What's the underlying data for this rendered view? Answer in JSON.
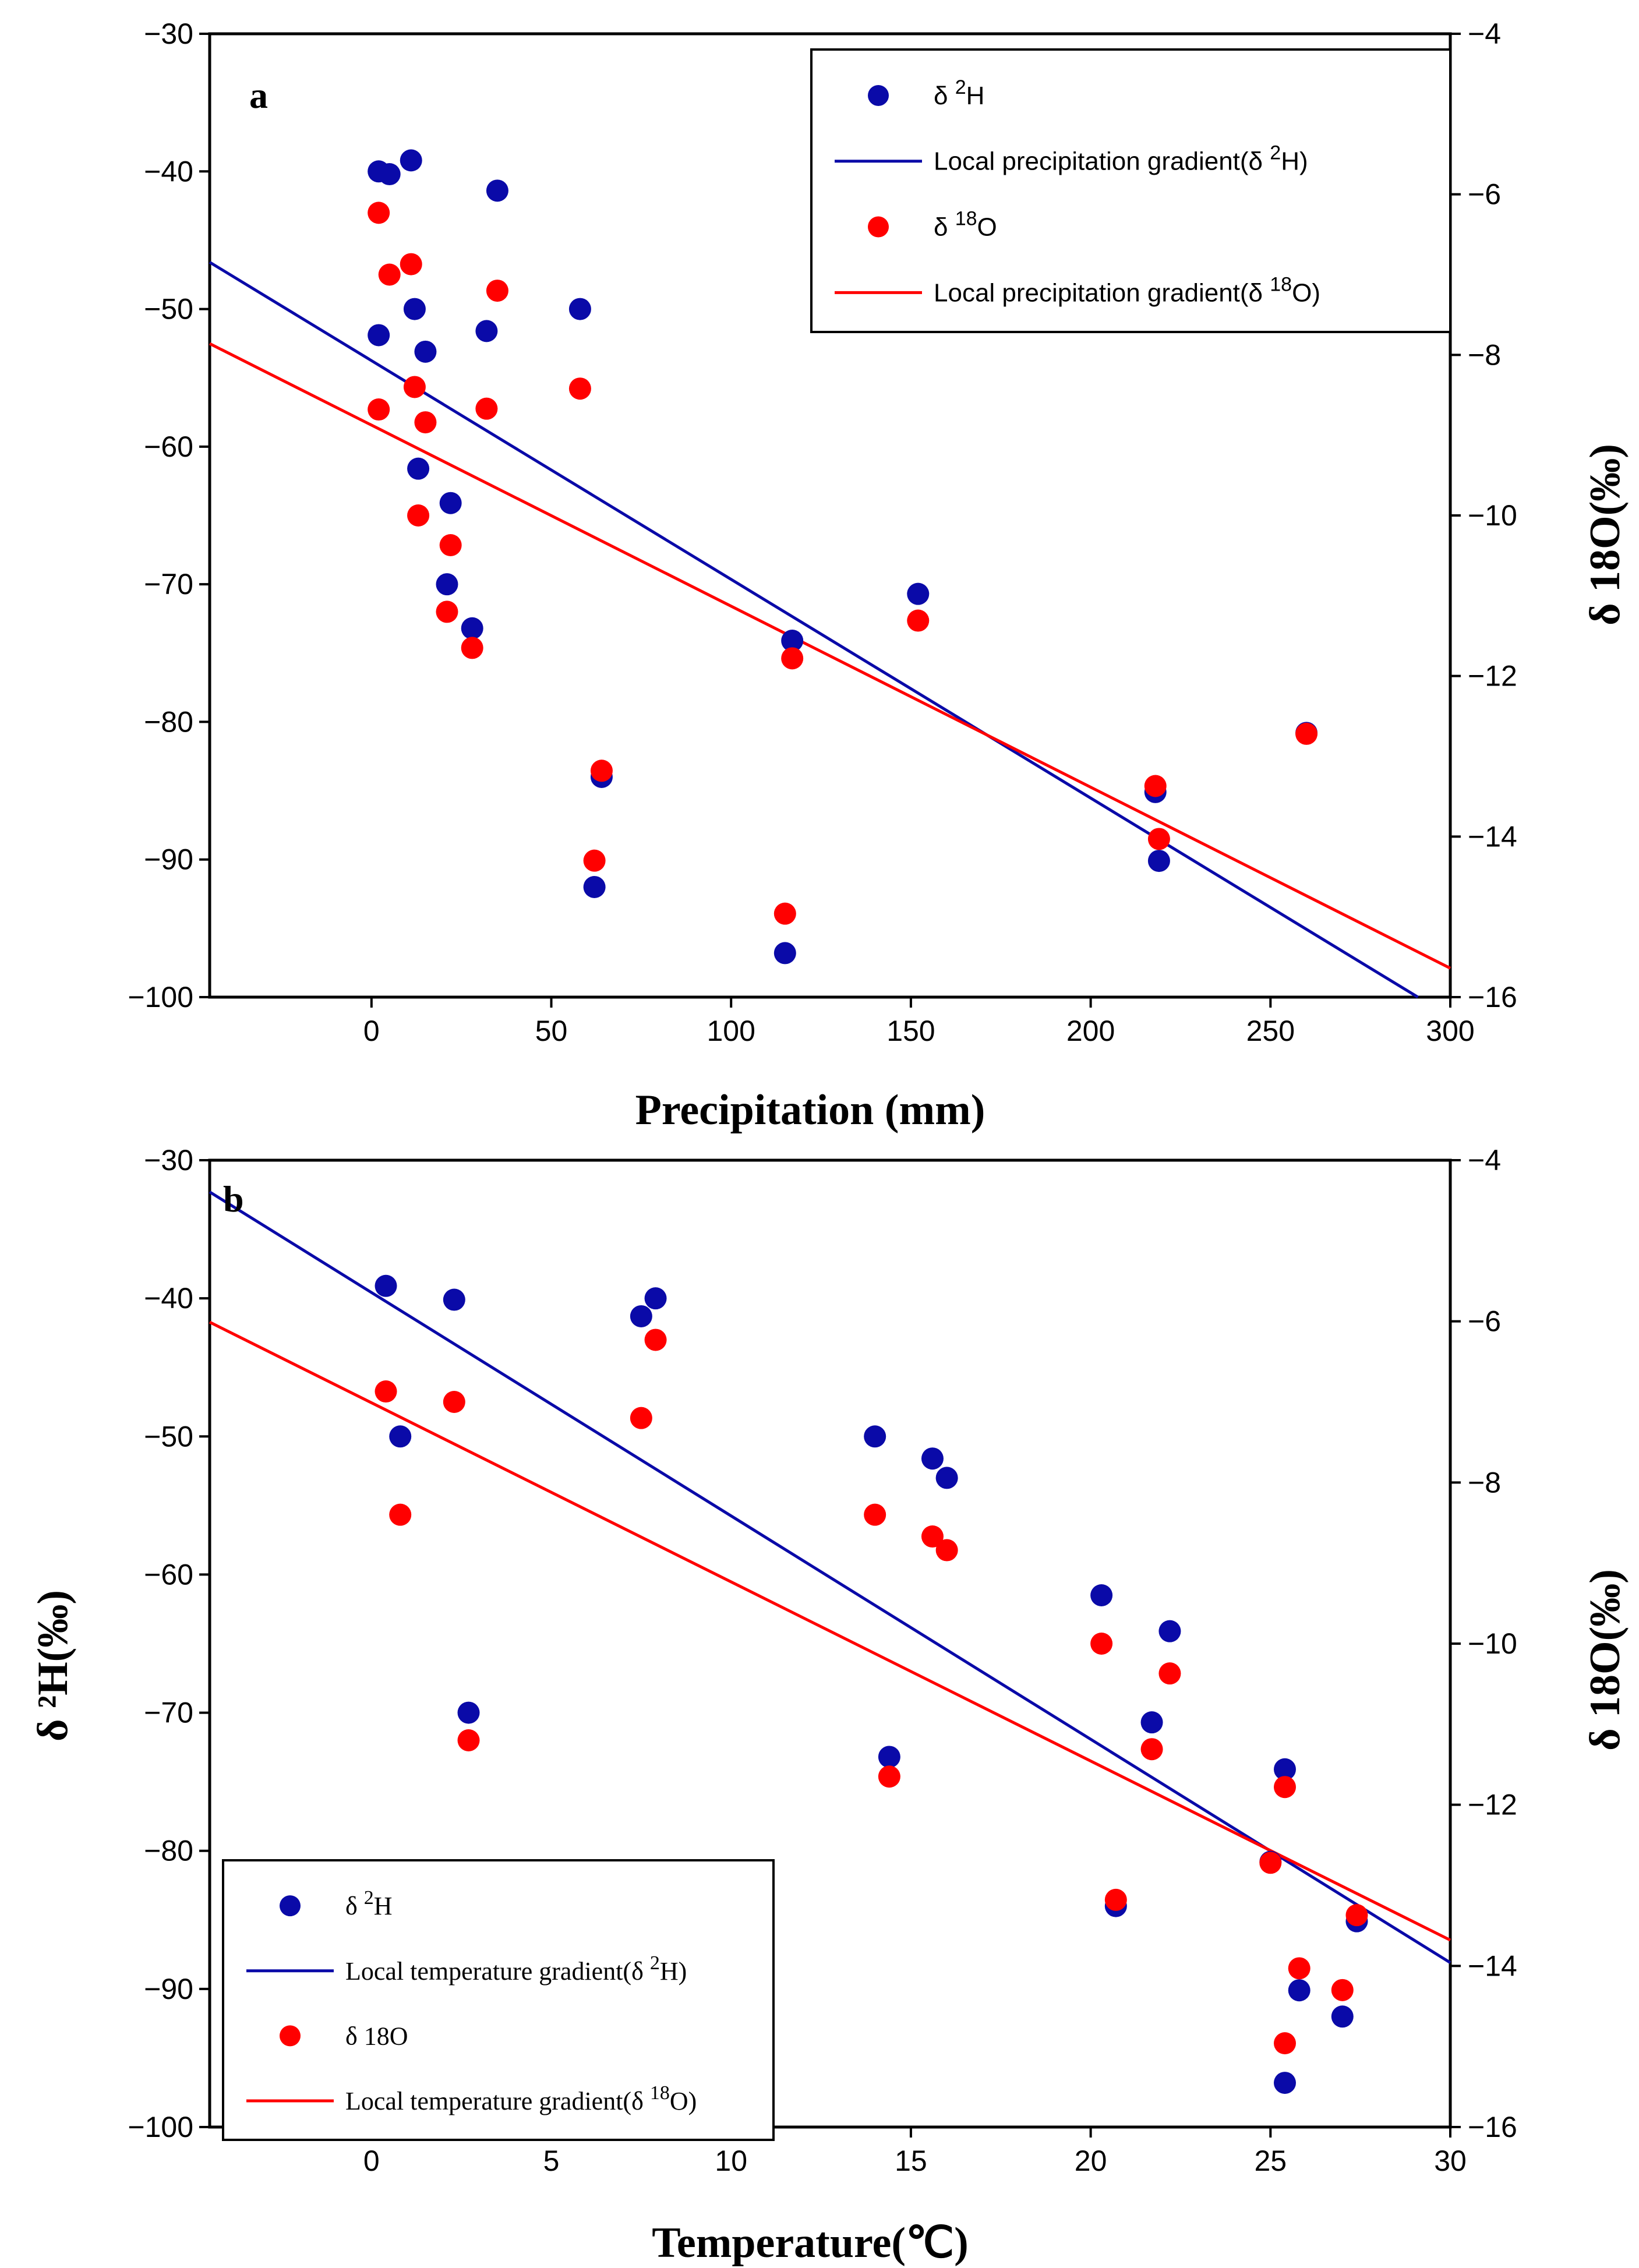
{
  "chart_data": [
    {
      "panel": "a",
      "type": "scatter",
      "xlabel": "Precipitation (mm)",
      "ylabel_left": "",
      "ylabel_right": "δ 18O(‰)",
      "xlim": [
        -45,
        300
      ],
      "ylim_left": [
        -100,
        -30
      ],
      "ylim_right": [
        -16,
        -4
      ],
      "xticks": [
        0,
        50,
        100,
        150,
        200,
        250,
        300
      ],
      "yticks_left": [
        -100,
        -90,
        -80,
        -70,
        -60,
        -50,
        -40,
        -30
      ],
      "yticks_right": [
        -16,
        -14,
        -12,
        -10,
        -8,
        -6,
        -4
      ],
      "legend": {
        "position": "top-right",
        "entries": [
          {
            "base": "δ ",
            "sup": "2",
            "rest": "H",
            "kind": "marker",
            "color": "#0a0aa8",
            "font": "sans"
          },
          {
            "base": "Local precipitation gradient(δ ",
            "sup": "2",
            "rest": "H)",
            "kind": "line",
            "color": "#0a0aa8",
            "font": "sans"
          },
          {
            "base": "δ ",
            "sup": "18",
            "rest": "O",
            "kind": "marker",
            "color": "#ff0000",
            "font": "sans"
          },
          {
            "base": "Local precipitation gradient(δ ",
            "sup": "18",
            "rest": "O)",
            "kind": "line",
            "color": "#ff0000",
            "font": "sans"
          }
        ]
      },
      "series": [
        {
          "name": "δ2H",
          "axis": "left",
          "color": "#0a0aa8",
          "points": [
            [
              2,
              -40
            ],
            [
              5,
              -40.2
            ],
            [
              11,
              -39.2
            ],
            [
              35,
              -41.4
            ],
            [
              2,
              -51.9
            ],
            [
              12,
              -50
            ],
            [
              15,
              -53.1
            ],
            [
              32,
              -51.6
            ],
            [
              58,
              -50
            ],
            [
              13,
              -61.6
            ],
            [
              22,
              -64.1
            ],
            [
              21,
              -70
            ],
            [
              28,
              -73.2
            ],
            [
              117,
              -74.1
            ],
            [
              152,
              -70.7
            ],
            [
              64,
              -84
            ],
            [
              62,
              -92
            ],
            [
              115,
              -96.8
            ],
            [
              218,
              -85.1
            ],
            [
              219,
              -90.1
            ],
            [
              260,
              -80.8
            ]
          ]
        },
        {
          "name": "δ18O",
          "axis": "right",
          "color": "#ff0000",
          "points": [
            [
              2,
              -6.23
            ],
            [
              5,
              -7.0
            ],
            [
              11,
              -6.87
            ],
            [
              35,
              -7.2
            ],
            [
              2,
              -8.68
            ],
            [
              12,
              -8.4
            ],
            [
              15,
              -8.84
            ],
            [
              32,
              -8.67
            ],
            [
              58,
              -8.42
            ],
            [
              13,
              -10.0
            ],
            [
              22,
              -10.37
            ],
            [
              21,
              -11.2
            ],
            [
              28,
              -11.65
            ],
            [
              117,
              -11.78
            ],
            [
              152,
              -11.31
            ],
            [
              64,
              -13.18
            ],
            [
              62,
              -14.3
            ],
            [
              115,
              -14.96
            ],
            [
              218,
              -13.37
            ],
            [
              219,
              -14.03
            ],
            [
              260,
              -12.72
            ]
          ]
        }
      ],
      "fit_lines": [
        {
          "name": "Local precipitation gradient(δ2H)",
          "axis": "left",
          "color": "#0a0aa8",
          "x": [
            -45,
            291
          ],
          "y": [
            -46.6,
            -100
          ]
        },
        {
          "name": "Local precipitation gradient(δ18O)",
          "axis": "right",
          "color": "#ff0000",
          "x": [
            -45,
            300
          ],
          "y": [
            -7.86,
            -15.64
          ]
        }
      ]
    },
    {
      "panel": "b",
      "type": "scatter",
      "xlabel": "Temperature(℃)",
      "ylabel_left": "δ ²H(‰)",
      "ylabel_right": "δ 18O(‰)",
      "xlim": [
        -4.5,
        30
      ],
      "ylim_left": [
        -100,
        -30
      ],
      "ylim_right": [
        -16,
        -4
      ],
      "xticks": [
        0,
        5,
        10,
        15,
        20,
        25,
        30
      ],
      "yticks_left": [
        -100,
        -90,
        -80,
        -70,
        -60,
        -50,
        -40,
        -30
      ],
      "yticks_right": [
        -16,
        -14,
        -12,
        -10,
        -8,
        -6,
        -4
      ],
      "legend": {
        "position": "bottom-left",
        "entries": [
          {
            "base": "δ ",
            "sup": "2",
            "rest": "H",
            "kind": "marker",
            "color": "#0a0aa8",
            "font": "serif"
          },
          {
            "base": "Local temperature gradient(δ ",
            "sup": "2",
            "rest": "H)",
            "kind": "line",
            "color": "#0a0aa8",
            "font": "serif"
          },
          {
            "base": "δ 18O",
            "sup": "",
            "rest": "",
            "kind": "marker",
            "color": "#ff0000",
            "font": "serif"
          },
          {
            "base": "Local temperature gradient(δ ",
            "sup": "18",
            "rest": "O)",
            "kind": "line",
            "color": "#ff0000",
            "font": "serif"
          }
        ]
      },
      "series": [
        {
          "name": "δ2H",
          "axis": "left",
          "color": "#0a0aa8",
          "points": [
            [
              0.4,
              -39.1
            ],
            [
              2.3,
              -40.1
            ],
            [
              7.9,
              -40
            ],
            [
              7.5,
              -41.3
            ],
            [
              0.8,
              -50
            ],
            [
              14,
              -50
            ],
            [
              15.6,
              -51.6
            ],
            [
              16,
              -53
            ],
            [
              20.3,
              -61.5
            ],
            [
              22.2,
              -64.1
            ],
            [
              2.7,
              -70
            ],
            [
              21.7,
              -70.7
            ],
            [
              14.4,
              -73.2
            ],
            [
              25.4,
              -74.1
            ],
            [
              20.7,
              -84
            ],
            [
              27.4,
              -85.1
            ],
            [
              25.8,
              -90.1
            ],
            [
              27,
              -92
            ],
            [
              25.4,
              -96.8
            ],
            [
              25,
              -80.8
            ]
          ]
        },
        {
          "name": "δ18O",
          "axis": "right",
          "color": "#ff0000",
          "points": [
            [
              0.4,
              -6.87
            ],
            [
              2.3,
              -7.0
            ],
            [
              7.9,
              -6.23
            ],
            [
              7.5,
              -7.2
            ],
            [
              0.8,
              -8.4
            ],
            [
              14,
              -8.4
            ],
            [
              15.6,
              -8.67
            ],
            [
              16,
              -8.84
            ],
            [
              20.3,
              -10.0
            ],
            [
              22.2,
              -10.37
            ],
            [
              2.7,
              -11.2
            ],
            [
              21.7,
              -11.31
            ],
            [
              14.4,
              -11.65
            ],
            [
              25.4,
              -11.78
            ],
            [
              20.7,
              -13.18
            ],
            [
              27.4,
              -13.37
            ],
            [
              25.8,
              -14.03
            ],
            [
              27,
              -14.3
            ],
            [
              25.4,
              -14.96
            ],
            [
              25,
              -12.72
            ]
          ]
        }
      ],
      "fit_lines": [
        {
          "name": "Local temperature gradient(δ2H)",
          "axis": "left",
          "color": "#0a0aa8",
          "x": [
            -4.5,
            30
          ],
          "y": [
            -32.3,
            -88.1
          ]
        },
        {
          "name": "Local temperature gradient(δ18O)",
          "axis": "right",
          "color": "#ff0000",
          "x": [
            -4.5,
            30
          ],
          "y": [
            -6.01,
            -13.68
          ]
        }
      ]
    }
  ]
}
